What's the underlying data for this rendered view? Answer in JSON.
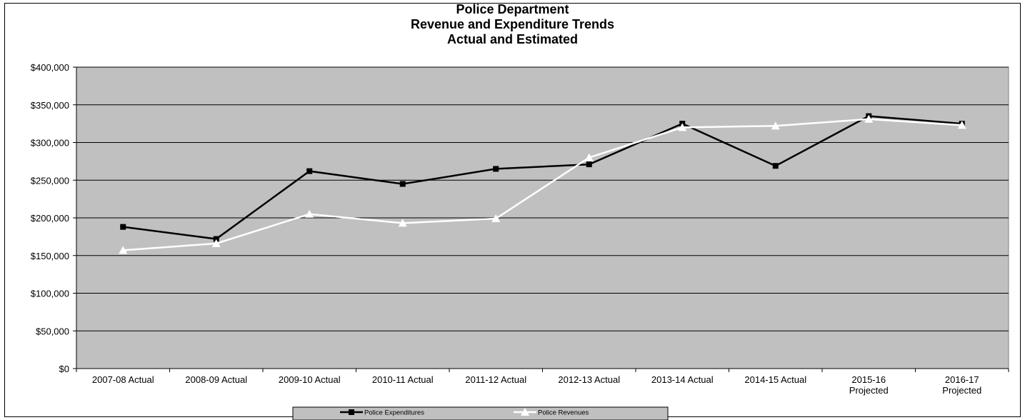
{
  "chart_data": {
    "type": "line",
    "title_lines": [
      "Police Department",
      "Revenue and Expenditure Trends",
      "Actual and Estimated"
    ],
    "categories": [
      [
        "2007-08 Actual"
      ],
      [
        "2008-09 Actual"
      ],
      [
        "2009-10 Actual"
      ],
      [
        "2010-11 Actual"
      ],
      [
        "2011-12 Actual"
      ],
      [
        "2012-13 Actual"
      ],
      [
        "2013-14 Actual"
      ],
      [
        "2014-15 Actual"
      ],
      [
        "2015-16",
        "Projected"
      ],
      [
        "2016-17",
        "Projected"
      ]
    ],
    "y_ticks": [
      "$0",
      "$50,000",
      "$100,000",
      "$150,000",
      "$200,000",
      "$250,000",
      "$300,000",
      "$350,000",
      "$400,000"
    ],
    "ylim": [
      0,
      400000
    ],
    "grid": true,
    "legend_position": "bottom",
    "plot_background": "#c0c0c0",
    "series": [
      {
        "name": "Police Expenditures",
        "color": "#000000",
        "marker": "square",
        "values": [
          188000,
          172000,
          262000,
          245000,
          265000,
          271000,
          325000,
          269000,
          335000,
          325000
        ]
      },
      {
        "name": "Police Revenues",
        "color": "#ffffff",
        "marker": "triangle",
        "values": [
          157000,
          166000,
          205000,
          193000,
          199000,
          280000,
          320000,
          322000,
          331000,
          323000
        ]
      }
    ]
  }
}
